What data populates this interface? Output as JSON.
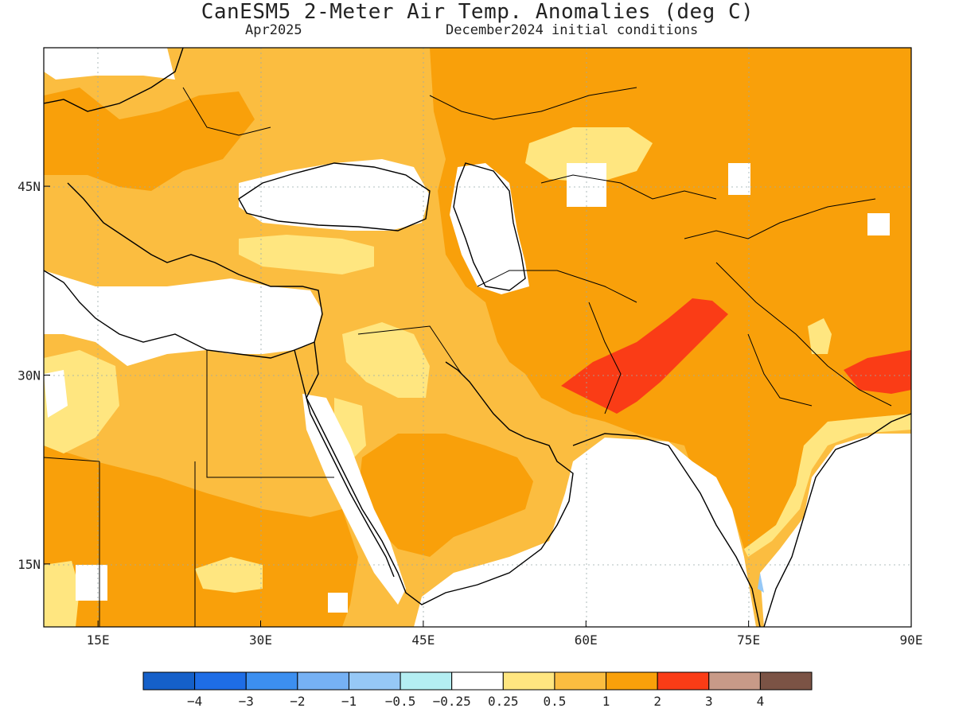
{
  "title": "CanESM5 2-Meter Air Temp. Anomalies (deg C)",
  "subtitle_left": "Apr2025",
  "subtitle_right": "December2024 initial conditions",
  "map_extent": {
    "lon_min": 10,
    "lon_max": 90,
    "lat_min": 10,
    "lat_max": 56
  },
  "x_ticks": [
    {
      "lon": 15,
      "label": "15E"
    },
    {
      "lon": 30,
      "label": "30E"
    },
    {
      "lon": 45,
      "label": "45E"
    },
    {
      "lon": 60,
      "label": "60E"
    },
    {
      "lon": 75,
      "label": "75E"
    },
    {
      "lon": 90,
      "label": "90E"
    }
  ],
  "y_ticks": [
    {
      "lat": 15,
      "label": "15N"
    },
    {
      "lat": 30,
      "label": "30N"
    },
    {
      "lat": 45,
      "label": "45N"
    }
  ],
  "colorbar": {
    "colors": [
      "#1560c9",
      "#1e6de6",
      "#3c8ff0",
      "#76b1f4",
      "#96c8f6",
      "#b4eef2",
      "#ffffff",
      "#ffe680",
      "#fbbd40",
      "#f9a00a",
      "#fa3c16",
      "#c89a88",
      "#7b5345"
    ],
    "labels": [
      "−4",
      "−3",
      "−2",
      "−1",
      "−0.5",
      "−0.25",
      "0.25",
      "0.5",
      "1",
      "2",
      "3",
      "4"
    ]
  },
  "anomaly_field": {
    "levels": [
      "0.25",
      "0.5",
      "1",
      "2",
      "3"
    ],
    "level_colors": {
      "0.25": "#ffe680",
      "0.5": "#fbbd40",
      "1": "#f9a00a",
      "2": "#fa3c16",
      "3": "#c89a88"
    }
  }
}
